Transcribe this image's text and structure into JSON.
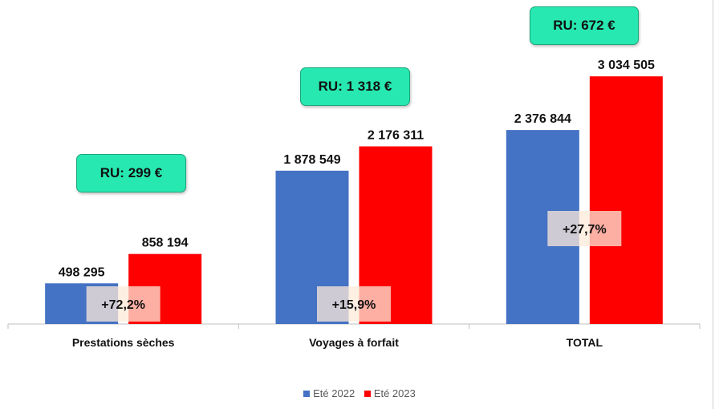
{
  "chart_data": {
    "type": "bar",
    "categories": [
      "Prestations sèches",
      "Voyages à forfait",
      "TOTAL"
    ],
    "series": [
      {
        "name": "Eté 2022",
        "color": "#4472c4",
        "values": [
          498295,
          1878549,
          2376844
        ],
        "labels": [
          "498 295",
          "1 878 549",
          "2 376 844"
        ]
      },
      {
        "name": "Eté 2023",
        "color": "#ff0000",
        "values": [
          858194,
          2176311,
          3034505
        ],
        "labels": [
          "858 194",
          "2 176 311",
          "3 034 505"
        ]
      }
    ],
    "growth_labels": [
      "+72,2%",
      "+15,9%",
      "+27,7%"
    ],
    "ru_labels": [
      "RU: 299 €",
      "RU: 1 318 €",
      "RU: 672 €"
    ],
    "ylim": [
      0,
      3400000
    ],
    "grid": false,
    "legend_position": "bottom",
    "colors": {
      "ru_badge": "#27e8b0",
      "growth_box": "#fde9d9"
    }
  }
}
